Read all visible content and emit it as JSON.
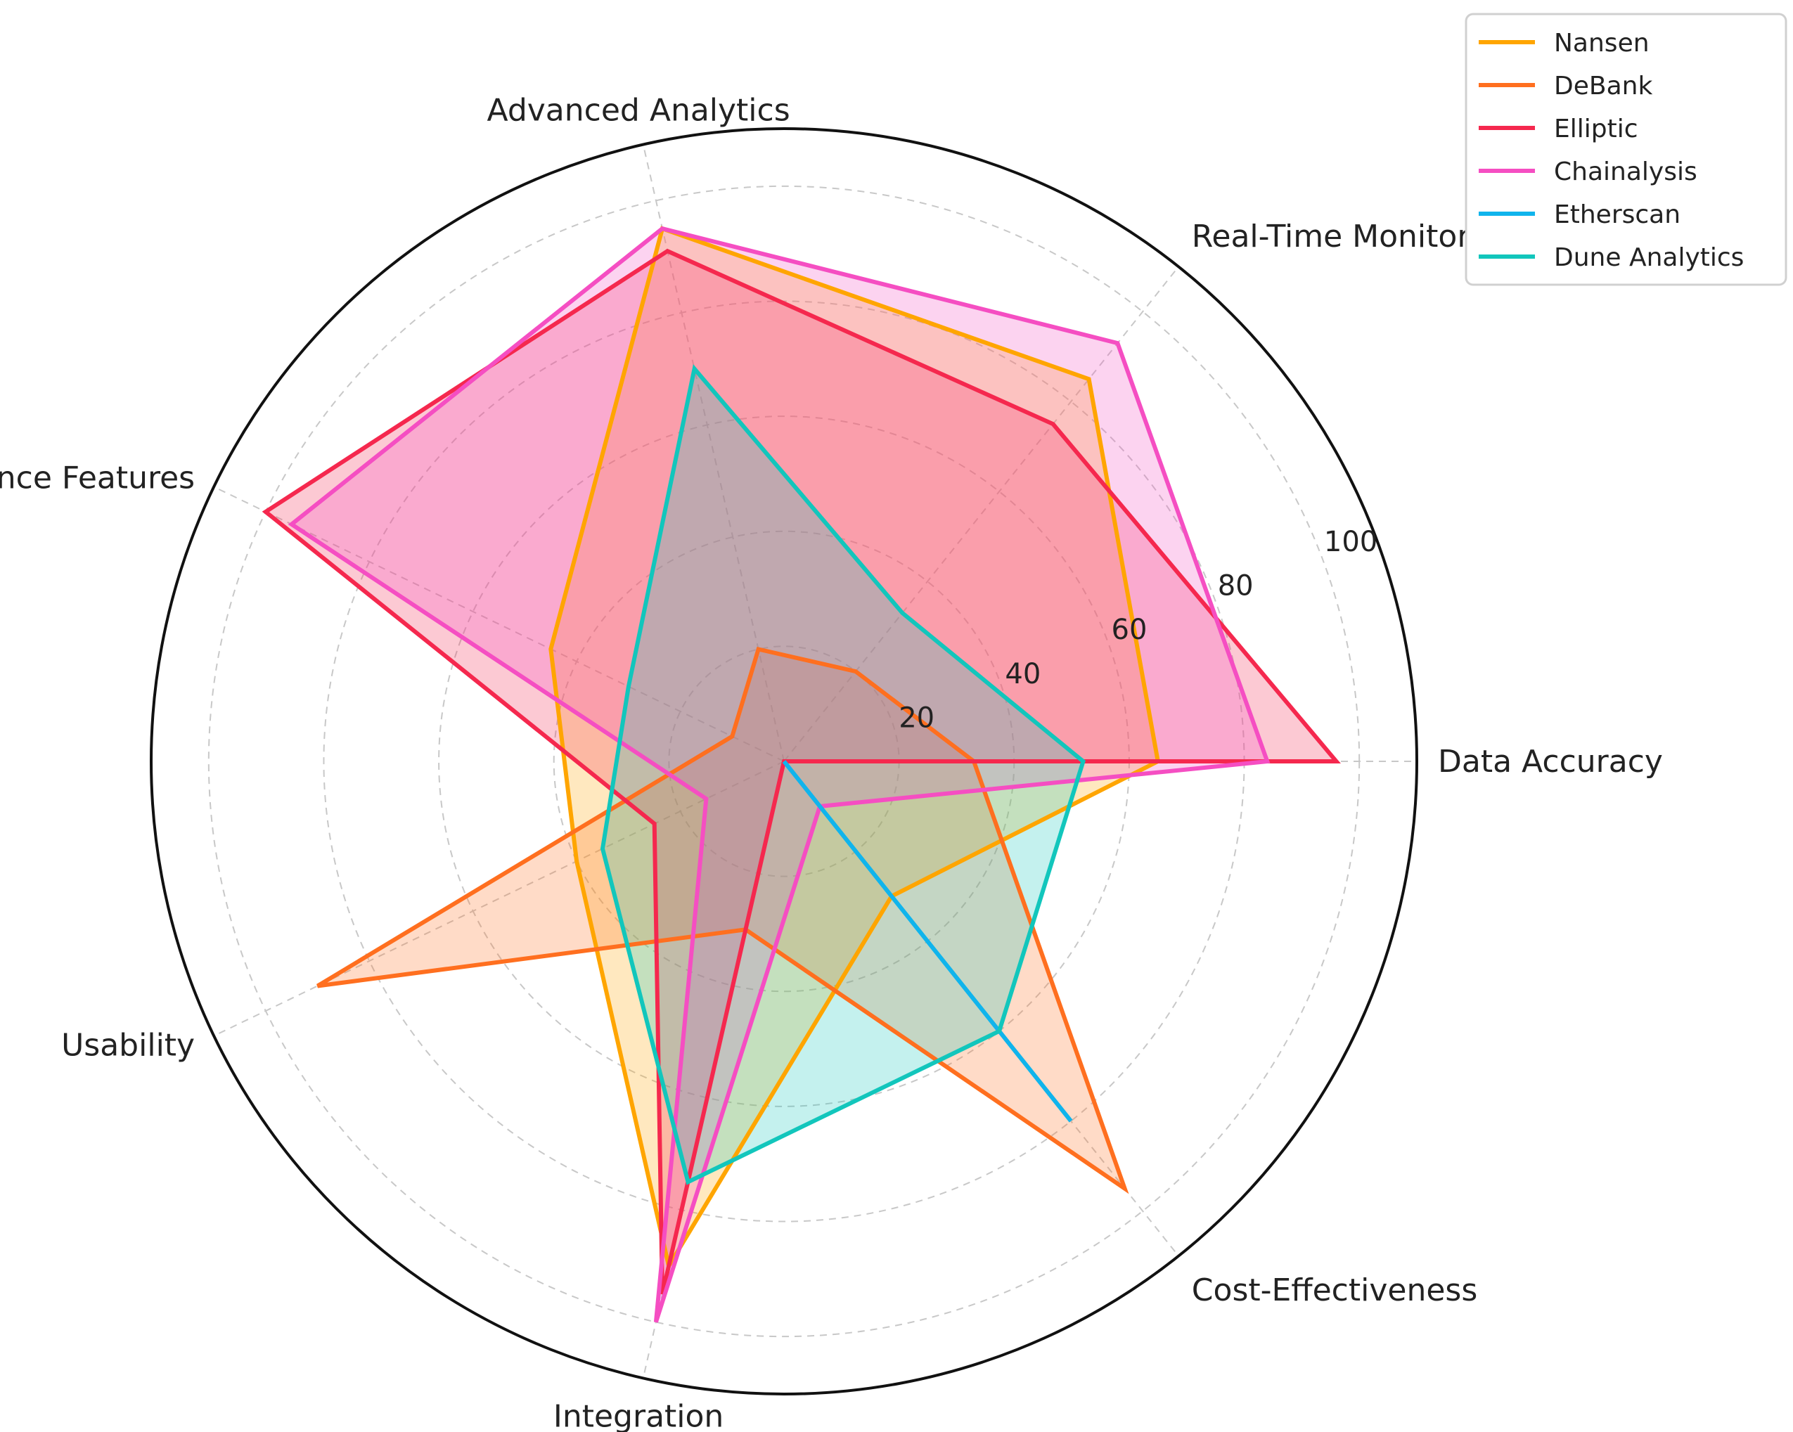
{
  "chart_data": {
    "type": "radar",
    "title": "",
    "axes": [
      "Data Accuracy",
      "Real-Time Monitoring",
      "Advanced Analytics",
      "Compliance Features",
      "Usability",
      "Integration",
      "Cost-Effectiveness"
    ],
    "r_ticks": [
      20,
      40,
      60,
      80,
      100
    ],
    "r_tick_labels": [
      "20",
      "40",
      "60",
      "80",
      "100"
    ],
    "rlim": [
      0,
      110
    ],
    "grid": true,
    "legend_position": "top-right",
    "series": [
      {
        "name": "Nansen",
        "color": "#ffa500",
        "values": [
          65,
          85,
          95,
          45,
          40,
          90,
          30
        ]
      },
      {
        "name": "DeBank",
        "color": "#ff6f1f",
        "values": [
          33,
          20,
          20,
          10,
          90,
          30,
          95
        ]
      },
      {
        "name": "Elliptic",
        "color": "#f5284e",
        "values": [
          96,
          75,
          91,
          100,
          25,
          95,
          0
        ]
      },
      {
        "name": "Chainalysis",
        "color": "#f54ec2",
        "values": [
          84,
          93,
          95,
          95,
          15,
          100,
          10
        ]
      },
      {
        "name": "Etherscan",
        "color": "#10b4ec",
        "values": [
          0,
          0,
          0,
          0,
          0,
          0,
          80
        ]
      },
      {
        "name": "Dune Analytics",
        "color": "#12c6bc",
        "values": [
          52,
          33,
          70,
          30,
          35,
          75,
          60
        ]
      }
    ]
  }
}
